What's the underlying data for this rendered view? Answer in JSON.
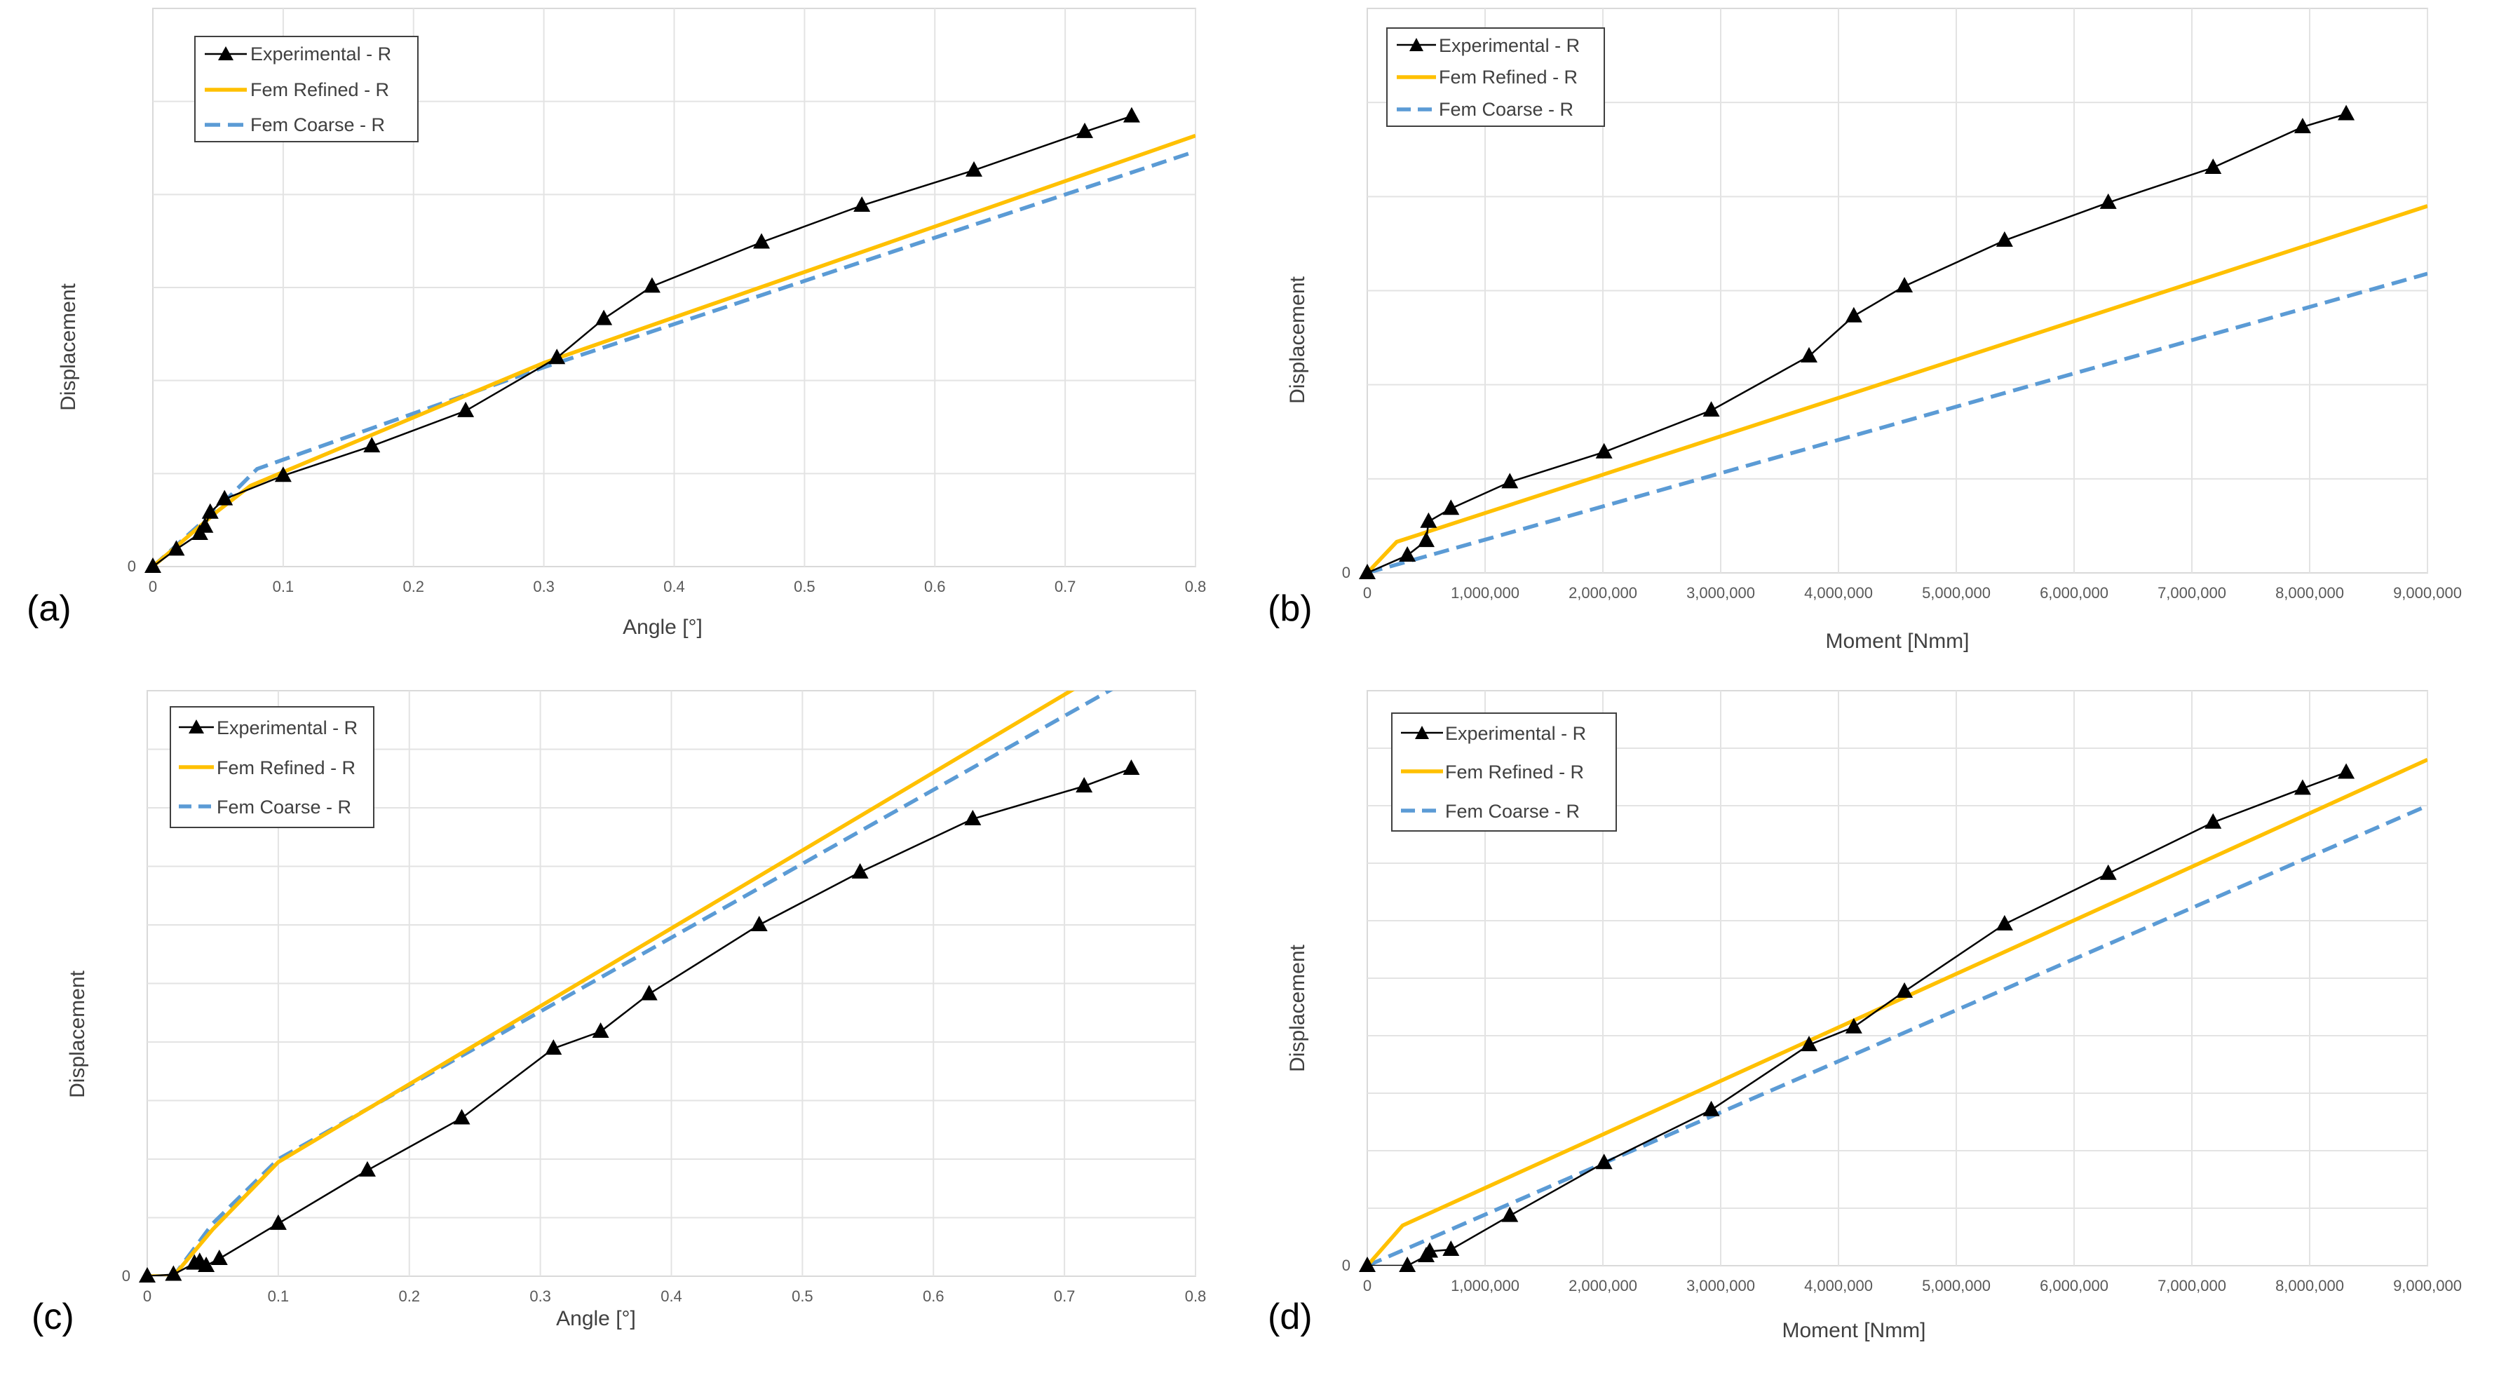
{
  "figure": {
    "panel_labels": [
      "(a)",
      "(b)",
      "(c)",
      "(d)"
    ],
    "legend": [
      "Experimental - R",
      "Fem Refined - R",
      "Fem Coarse - R"
    ],
    "colors": {
      "experimental": "#000000",
      "fem_refined": "#ffc000",
      "fem_coarse": "#5b9bd5",
      "grid": "#e3e3e3"
    }
  },
  "chart_data": [
    {
      "panel": "(a)",
      "type": "line",
      "title": "",
      "xlabel": "Angle [°]",
      "ylabel": "Displacement",
      "xlim": [
        0,
        0.8
      ],
      "ylim": [
        0,
        1
      ],
      "x_ticks": [
        0,
        0.1,
        0.2,
        0.3,
        0.4,
        0.5,
        0.6,
        0.7,
        0.8
      ],
      "x_tick_labels": [
        "0",
        "0.1",
        "0.2",
        "0.3",
        "0.4",
        "0.5",
        "0.6",
        "0.7",
        "0.8"
      ],
      "y_tick_labels": [
        "0"
      ],
      "y_gridlines": 5,
      "legend_position": "top-left",
      "series": [
        {
          "name": "Experimental - R",
          "style": "line-triangle",
          "x": [
            0,
            0.018,
            0.036,
            0.04,
            0.044,
            0.055,
            0.1,
            0.168,
            0.24,
            0.31,
            0.346,
            0.383,
            0.467,
            0.544,
            0.63,
            0.715,
            0.751
          ],
          "y": [
            0,
            0.031,
            0.059,
            0.072,
            0.097,
            0.121,
            0.163,
            0.216,
            0.279,
            0.374,
            0.444,
            0.502,
            0.581,
            0.647,
            0.71,
            0.779,
            0.807
          ]
        },
        {
          "name": "Fem Refined - R",
          "style": "solid",
          "x": [
            0,
            0.05,
            0.075,
            0.3,
            0.8
          ],
          "y": [
            0,
            0.1,
            0.145,
            0.365,
            0.772
          ]
        },
        {
          "name": "Fem Coarse - R",
          "style": "dashed",
          "x": [
            0,
            0.05,
            0.08,
            0.3,
            0.8
          ],
          "y": [
            0,
            0.105,
            0.175,
            0.357,
            0.744
          ]
        }
      ]
    },
    {
      "panel": "(b)",
      "type": "line",
      "title": "",
      "xlabel": "Moment [Nmm]",
      "ylabel": "Displacement",
      "xlim": [
        0,
        9000000
      ],
      "ylim": [
        0,
        1
      ],
      "x_ticks": [
        0,
        1000000,
        2000000,
        3000000,
        4000000,
        5000000,
        6000000,
        7000000,
        8000000,
        9000000
      ],
      "x_tick_labels": [
        "0",
        "1,000,000",
        "2,000,000",
        "3,000,000",
        "4,000,000",
        "5,000,000",
        "6,000,000",
        "7,000,000",
        "8,000,000",
        "9,000,000"
      ],
      "y_tick_labels": [
        "0"
      ],
      "y_gridlines": 5,
      "legend_position": "top-left",
      "series": [
        {
          "name": "Experimental - R",
          "style": "line-triangle",
          "x": [
            0,
            340000,
            500000,
            520000,
            710000,
            1210000,
            2010000,
            2920000,
            3750000,
            4130000,
            4560000,
            5410000,
            6290000,
            7180000,
            7940000,
            8310000
          ],
          "y": [
            0,
            0.031,
            0.057,
            0.091,
            0.114,
            0.161,
            0.214,
            0.288,
            0.384,
            0.455,
            0.508,
            0.589,
            0.656,
            0.718,
            0.79,
            0.813
          ]
        },
        {
          "name": "Fem Refined - R",
          "style": "solid",
          "x": [
            0,
            250000,
            9000000
          ],
          "y": [
            0,
            0.055,
            0.65
          ]
        },
        {
          "name": "Fem Coarse - R",
          "style": "dashed",
          "x": [
            0,
            9000000
          ],
          "y": [
            0,
            0.53
          ]
        }
      ]
    },
    {
      "panel": "(c)",
      "type": "line",
      "title": "",
      "xlabel": "Angle [°]",
      "ylabel": "Displacement",
      "xlim": [
        0,
        0.8
      ],
      "ylim": [
        0,
        1
      ],
      "x_ticks": [
        0,
        0.1,
        0.2,
        0.3,
        0.4,
        0.5,
        0.6,
        0.7,
        0.8
      ],
      "x_tick_labels": [
        "0",
        "0.1",
        "0.2",
        "0.3",
        "0.4",
        "0.5",
        "0.6",
        "0.7",
        "0.8"
      ],
      "y_tick_labels": [
        "0"
      ],
      "y_gridlines": 9,
      "legend_position": "top-left",
      "series": [
        {
          "name": "Experimental - R",
          "style": "line-triangle",
          "x": [
            0,
            0.02,
            0.036,
            0.04,
            0.045,
            0.055,
            0.1,
            0.168,
            0.24,
            0.31,
            0.346,
            0.383,
            0.467,
            0.544,
            0.63,
            0.715,
            0.751
          ],
          "y": [
            0,
            0.003,
            0.022,
            0.025,
            0.018,
            0.03,
            0.09,
            0.181,
            0.27,
            0.389,
            0.418,
            0.482,
            0.6,
            0.69,
            0.781,
            0.837,
            0.867
          ]
        },
        {
          "name": "Fem Refined - R",
          "style": "solid",
          "x": [
            0,
            0.02,
            0.05,
            0.1,
            0.72
          ],
          "y": [
            0,
            0,
            0.08,
            0.195,
            1.02
          ]
        },
        {
          "name": "Fem Coarse - R",
          "style": "dashed",
          "x": [
            0,
            0.02,
            0.05,
            0.1,
            0.12,
            0.75
          ],
          "y": [
            0,
            0,
            0.09,
            0.2,
            0.225,
            1.02
          ]
        }
      ]
    },
    {
      "panel": "(d)",
      "type": "line",
      "title": "",
      "xlabel": "Moment [Nmm]",
      "ylabel": "Displacement",
      "xlim": [
        0,
        9000000
      ],
      "ylim": [
        0,
        1
      ],
      "x_ticks": [
        0,
        1000000,
        2000000,
        3000000,
        4000000,
        5000000,
        6000000,
        7000000,
        8000000,
        9000000
      ],
      "x_tick_labels": [
        "0",
        "1,000,000",
        "2,000,000",
        "3,000,000",
        "4,000,000",
        "5,000,000",
        "6,000,000",
        "7,000,000",
        "8,000,000",
        "9,000,000"
      ],
      "y_tick_labels": [
        "0"
      ],
      "y_gridlines": 9,
      "legend_position": "top-left",
      "series": [
        {
          "name": "Experimental - R",
          "style": "line-triangle",
          "x": [
            0,
            340000,
            500000,
            530000,
            710000,
            1210000,
            2010000,
            2920000,
            3750000,
            4130000,
            4560000,
            5410000,
            6290000,
            7180000,
            7940000,
            8310000
          ],
          "y": [
            0,
            0,
            0.017,
            0.025,
            0.028,
            0.087,
            0.179,
            0.271,
            0.384,
            0.415,
            0.477,
            0.594,
            0.682,
            0.771,
            0.83,
            0.858
          ]
        },
        {
          "name": "Fem Refined - R",
          "style": "solid",
          "x": [
            0,
            300000,
            9000000
          ],
          "y": [
            0,
            0.07,
            0.88
          ]
        },
        {
          "name": "Fem Coarse - R",
          "style": "dashed",
          "x": [
            0,
            9000000
          ],
          "y": [
            0,
            0.8
          ]
        }
      ]
    }
  ]
}
